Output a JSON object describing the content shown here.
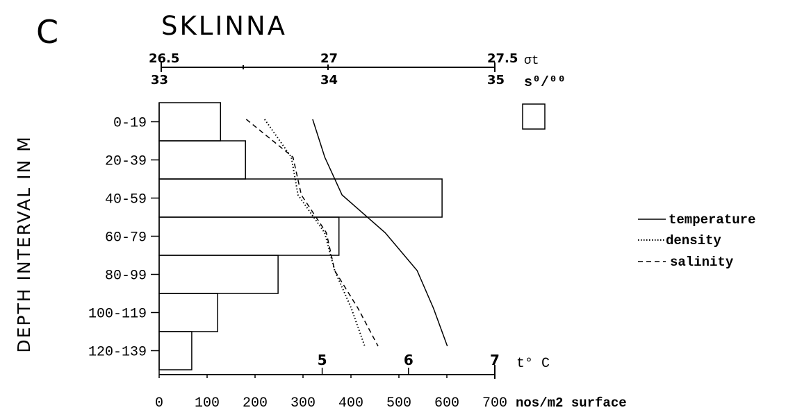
{
  "panel_letter": "C",
  "chart_data": {
    "type": "bar",
    "title": "SKLINNA",
    "ylabel": "DEPTH INTERVAL IN M",
    "categories": [
      "0-19",
      "20-39",
      "40-59",
      "60-79",
      "80-99",
      "100-119",
      "120-139"
    ],
    "abundance": {
      "axis_label": "nos/m2 surface",
      "ticks": [
        "0",
        "100",
        "200",
        "300",
        "400",
        "500",
        "600",
        "700"
      ],
      "xlim": [
        0,
        700
      ],
      "values": [
        128,
        180,
        590,
        375,
        248,
        122,
        68
      ]
    },
    "temperature_axis": {
      "unit_label": "t° C",
      "ticks": [
        "5",
        "6",
        "7"
      ],
      "xlim": [
        4,
        7
      ]
    },
    "top_axis": {
      "sigma_label": "σt",
      "salinity_label": "s⁰/⁰⁰",
      "sigma_ticks": [
        "26.5",
        "27",
        "27.5"
      ],
      "salinity_ticks": [
        "33",
        "34",
        "35"
      ],
      "sigma_lim": [
        26.5,
        27.5
      ],
      "salinity_lim": [
        33,
        35
      ]
    },
    "series": [
      {
        "name": "temperature",
        "style": "solid",
        "axis": "temperature",
        "values": [
          4.89,
          5.03,
          5.23,
          5.73,
          6.1,
          6.29,
          6.45
        ]
      },
      {
        "name": "density",
        "style": "dotted",
        "axis": "sigma",
        "values": [
          26.81,
          26.89,
          26.91,
          26.99,
          27.02,
          27.07,
          27.11
        ]
      },
      {
        "name": "salinity",
        "style": "dashed",
        "axis": "salinity",
        "values": [
          33.51,
          33.79,
          33.84,
          33.99,
          34.04,
          34.18,
          34.3
        ]
      }
    ],
    "legend_position": "right"
  }
}
